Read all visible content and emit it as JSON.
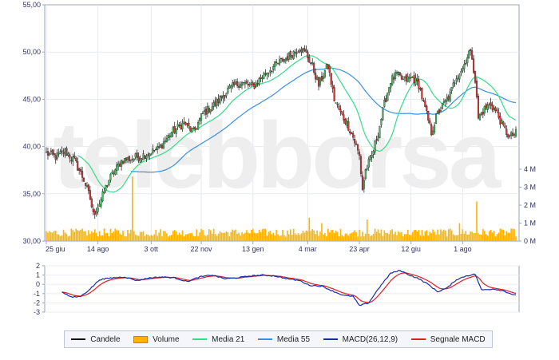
{
  "chart_data": {
    "type": "line",
    "watermark": "telebborsa",
    "price_axis": {
      "min": 30,
      "max": 55,
      "ticks": [
        "55,00",
        "50,00",
        "45,00",
        "40,00",
        "35,00",
        "30,00"
      ]
    },
    "volume_axis": {
      "min": 0,
      "max": 4,
      "ticks": [
        "4 M",
        "3 M",
        "2 M",
        "1 M",
        "0 M"
      ]
    },
    "macd_axis": {
      "min": -3,
      "max": 2,
      "ticks": [
        "2",
        "1",
        "0",
        "-1",
        "-2",
        "-3"
      ]
    },
    "x_ticks": [
      "25 giu",
      "14 ago",
      "3 ott",
      "22 nov",
      "13 gen",
      "4 mar",
      "23 apr",
      "12 giu",
      "1 ago"
    ],
    "price_keypoints": [
      [
        0,
        39.3
      ],
      [
        6,
        38.9
      ],
      [
        12,
        39.5
      ],
      [
        18,
        38.5
      ],
      [
        24,
        36.5
      ],
      [
        28,
        34.5
      ],
      [
        30,
        32.8
      ],
      [
        34,
        34.0
      ],
      [
        40,
        36.5
      ],
      [
        48,
        38.5
      ],
      [
        56,
        38.8
      ],
      [
        64,
        39.2
      ],
      [
        72,
        39.8
      ],
      [
        80,
        41.5
      ],
      [
        88,
        42.5
      ],
      [
        94,
        41.5
      ],
      [
        100,
        43.5
      ],
      [
        108,
        44.5
      ],
      [
        116,
        46.0
      ],
      [
        124,
        46.8
      ],
      [
        132,
        46.3
      ],
      [
        140,
        47.8
      ],
      [
        148,
        48.8
      ],
      [
        156,
        49.7
      ],
      [
        162,
        50.5
      ],
      [
        166,
        49.8
      ],
      [
        170,
        48.5
      ],
      [
        174,
        46.5
      ],
      [
        178,
        48.0
      ],
      [
        180,
        48.5
      ],
      [
        184,
        45.0
      ],
      [
        188,
        43.5
      ],
      [
        192,
        42.5
      ],
      [
        196,
        41.0
      ],
      [
        200,
        39.0
      ],
      [
        202,
        35.5
      ],
      [
        204,
        37.5
      ],
      [
        208,
        39.0
      ],
      [
        212,
        41.5
      ],
      [
        216,
        44.5
      ],
      [
        220,
        47.0
      ],
      [
        224,
        47.6
      ],
      [
        228,
        47.0
      ],
      [
        234,
        47.3
      ],
      [
        238,
        46.5
      ],
      [
        242,
        44.0
      ],
      [
        246,
        41.5
      ],
      [
        250,
        43.5
      ],
      [
        254,
        44.5
      ],
      [
        258,
        45.5
      ],
      [
        262,
        47.5
      ],
      [
        266,
        48.3
      ],
      [
        270,
        50.0
      ],
      [
        272,
        49.5
      ],
      [
        274,
        47.0
      ],
      [
        276,
        43.0
      ],
      [
        280,
        44.0
      ],
      [
        284,
        44.5
      ],
      [
        288,
        43.5
      ],
      [
        292,
        42.0
      ],
      [
        296,
        41.0
      ],
      [
        300,
        41.4
      ]
    ],
    "macd_keypoints": [
      [
        10,
        -0.8
      ],
      [
        16,
        -1.4
      ],
      [
        22,
        -1.3
      ],
      [
        28,
        -0.5
      ],
      [
        34,
        0.5
      ],
      [
        42,
        0.7
      ],
      [
        50,
        0.8
      ],
      [
        58,
        0.4
      ],
      [
        66,
        0.7
      ],
      [
        74,
        0.8
      ],
      [
        82,
        0.7
      ],
      [
        90,
        0.3
      ],
      [
        98,
        0.8
      ],
      [
        106,
        1.0
      ],
      [
        114,
        0.6
      ],
      [
        122,
        0.7
      ],
      [
        130,
        0.9
      ],
      [
        138,
        1.0
      ],
      [
        146,
        0.9
      ],
      [
        154,
        0.6
      ],
      [
        162,
        0.4
      ],
      [
        168,
        -0.1
      ],
      [
        176,
        -0.2
      ],
      [
        184,
        -0.8
      ],
      [
        190,
        -1.2
      ],
      [
        196,
        -1.3
      ],
      [
        200,
        -2.3
      ],
      [
        206,
        -2.0
      ],
      [
        212,
        -0.5
      ],
      [
        220,
        1.2
      ],
      [
        226,
        1.5
      ],
      [
        232,
        1.0
      ],
      [
        238,
        0.6
      ],
      [
        244,
        0.0
      ],
      [
        250,
        -0.8
      ],
      [
        256,
        -0.4
      ],
      [
        262,
        0.5
      ],
      [
        268,
        0.9
      ],
      [
        274,
        1.1
      ],
      [
        278,
        -0.6
      ],
      [
        286,
        -0.5
      ],
      [
        292,
        -0.7
      ],
      [
        298,
        -1.1
      ],
      [
        300,
        -1.2
      ]
    ],
    "series": [
      {
        "name": "Candele",
        "color": "#111111"
      },
      {
        "name": "Volume",
        "color": "#ffb300"
      },
      {
        "name": "Media 21",
        "color": "#33dd88"
      },
      {
        "name": "Media 55",
        "color": "#3a8fe0"
      },
      {
        "name": "MACD(26,12,9)",
        "color": "#1a2aa8"
      },
      {
        "name": "Segnale MACD",
        "color": "#e02020"
      }
    ],
    "volume_spikes": [
      [
        55,
        3.6
      ],
      [
        168,
        1.3
      ],
      [
        176,
        1.0
      ],
      [
        205,
        1.2
      ],
      [
        264,
        1.0
      ],
      [
        275,
        2.2
      ]
    ]
  },
  "legend": {
    "candele": "Candele",
    "volume": "Volume",
    "media21": "Media 21",
    "media55": "Media 55",
    "macd": "MACD(26,12,9)",
    "segnale": "Segnale MACD"
  }
}
